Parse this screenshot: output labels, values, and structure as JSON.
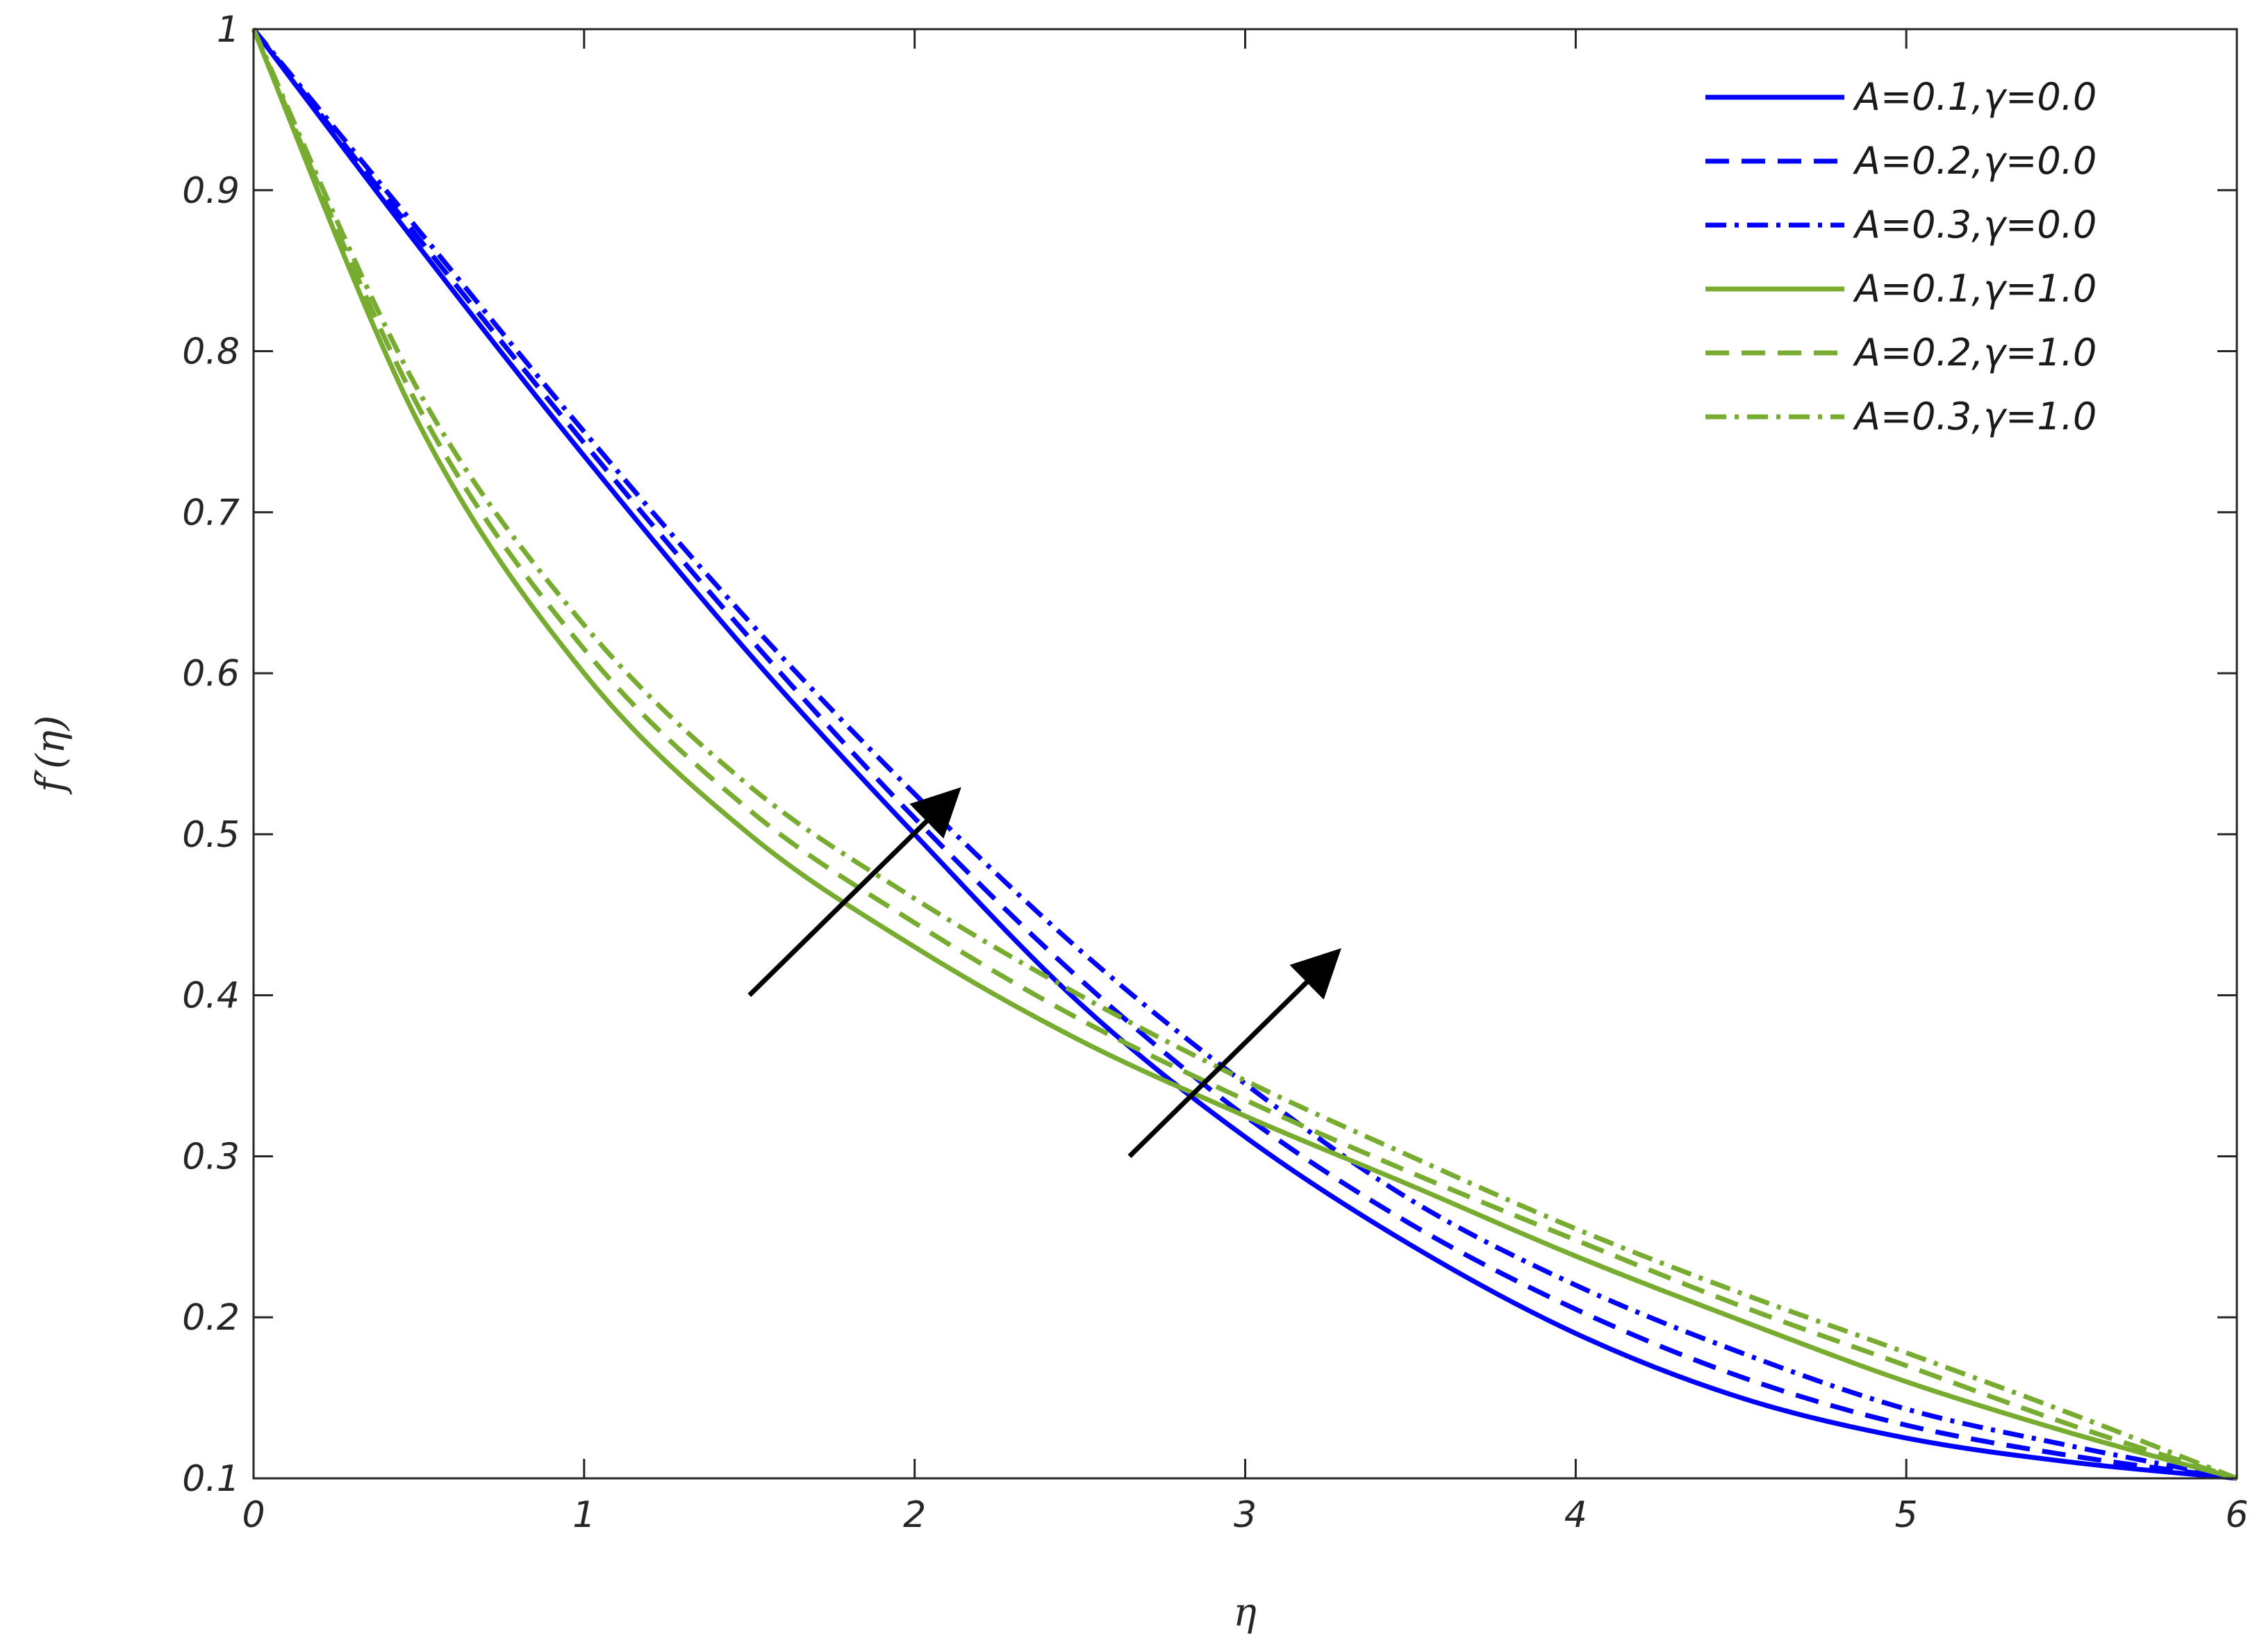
{
  "chart_data": {
    "type": "line",
    "title": "",
    "xlabel": "η",
    "ylabel": "f′(η)",
    "xlim": [
      0,
      6
    ],
    "ylim": [
      0.1,
      1
    ],
    "xticks": [
      "0",
      "1",
      "2",
      "3",
      "4",
      "5",
      "6"
    ],
    "yticks": [
      "0.1",
      "0.2",
      "0.3",
      "0.4",
      "0.5",
      "0.6",
      "0.7",
      "0.8",
      "0.9",
      "1"
    ],
    "grid": false,
    "legend_position": "top-right",
    "x": [
      0,
      0.5,
      1,
      1.5,
      2,
      2.5,
      3,
      3.5,
      4,
      4.5,
      5,
      5.5,
      6
    ],
    "series": [
      {
        "name": "A=0.1,γ=0.0",
        "color": "#0000ff",
        "dash": "solid",
        "values": [
          1.0,
          0.865,
          0.735,
          0.612,
          0.5,
          0.395,
          0.312,
          0.245,
          0.19,
          0.15,
          0.125,
          0.11,
          0.1
        ]
      },
      {
        "name": "A=0.2,γ=0.0",
        "color": "#0000ff",
        "dash": "dashed",
        "values": [
          1.0,
          0.87,
          0.743,
          0.622,
          0.51,
          0.41,
          0.325,
          0.258,
          0.205,
          0.163,
          0.133,
          0.114,
          0.1
        ]
      },
      {
        "name": "A=0.3,γ=0.0",
        "color": "#0000ff",
        "dash": "dashdot",
        "values": [
          1.0,
          0.875,
          0.75,
          0.632,
          0.525,
          0.428,
          0.345,
          0.273,
          0.22,
          0.178,
          0.143,
          0.12,
          0.1
        ]
      },
      {
        "name": "A=0.1,γ=1.0",
        "color": "#77ac30",
        "dash": "solid",
        "values": [
          1.0,
          0.755,
          0.6,
          0.5,
          0.43,
          0.372,
          0.325,
          0.282,
          0.238,
          0.198,
          0.16,
          0.128,
          0.1
        ]
      },
      {
        "name": "A=0.2,γ=1.0",
        "color": "#77ac30",
        "dash": "dashed",
        "values": [
          1.0,
          0.765,
          0.615,
          0.515,
          0.445,
          0.385,
          0.335,
          0.29,
          0.248,
          0.207,
          0.17,
          0.133,
          0.1
        ]
      },
      {
        "name": "A=0.3,γ=1.0",
        "color": "#77ac30",
        "dash": "dashdot",
        "values": [
          1.0,
          0.775,
          0.63,
          0.53,
          0.46,
          0.4,
          0.347,
          0.3,
          0.255,
          0.215,
          0.178,
          0.14,
          0.1
        ]
      }
    ],
    "annotations": [
      {
        "type": "arrow",
        "from": [
          1.5,
          0.4
        ],
        "to": [
          2.12,
          0.525
        ],
        "color": "#000000"
      },
      {
        "type": "arrow",
        "from": [
          2.65,
          0.3
        ],
        "to": [
          3.27,
          0.425
        ],
        "color": "#000000"
      }
    ]
  }
}
